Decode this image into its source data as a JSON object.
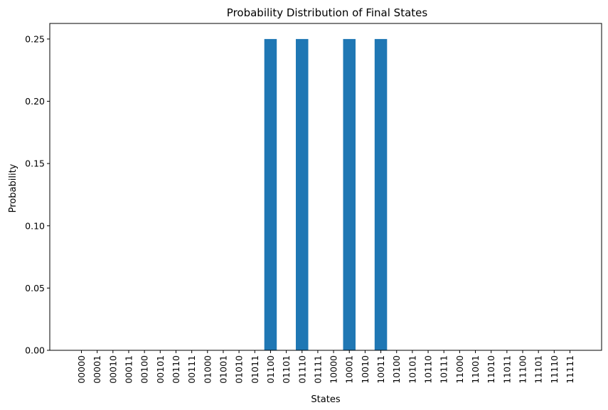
{
  "chart_data": {
    "type": "bar",
    "title": "Probability Distribution of Final States",
    "xlabel": "States",
    "ylabel": "Probability",
    "ylim": [
      0,
      0.2625
    ],
    "yticks": [
      "0.00",
      "0.05",
      "0.10",
      "0.15",
      "0.20",
      "0.25"
    ],
    "categories": [
      "00000",
      "00001",
      "00010",
      "00011",
      "00100",
      "00101",
      "00110",
      "00111",
      "01000",
      "01001",
      "01010",
      "01011",
      "01100",
      "01101",
      "01110",
      "01111",
      "10000",
      "10001",
      "10010",
      "10011",
      "10100",
      "10101",
      "10110",
      "10111",
      "11000",
      "11001",
      "11010",
      "11011",
      "11100",
      "11101",
      "11110",
      "11111"
    ],
    "values": [
      0,
      0,
      0,
      0,
      0,
      0,
      0,
      0,
      0,
      0,
      0,
      0,
      0.25,
      0,
      0.25,
      0,
      0,
      0.25,
      0,
      0.25,
      0,
      0,
      0,
      0,
      0,
      0,
      0,
      0,
      0,
      0,
      0,
      0
    ],
    "bar_color": "#1f77b4",
    "grid": false,
    "legend": "none"
  }
}
